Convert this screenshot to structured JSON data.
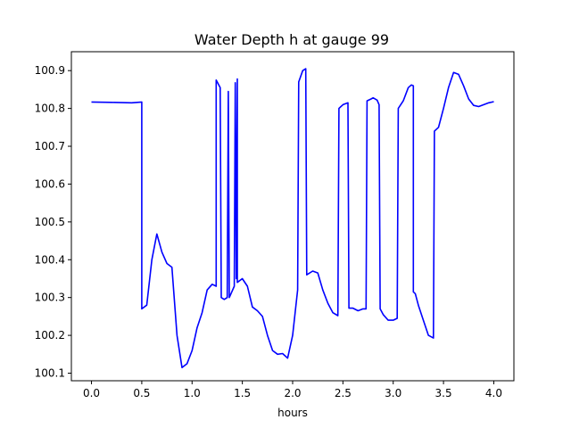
{
  "chart_data": {
    "type": "line",
    "title": "Water Depth h at gauge 99",
    "xlabel": "hours",
    "ylabel": "",
    "xlim": [
      -0.2,
      4.2
    ],
    "ylim": [
      100.08,
      100.95
    ],
    "xticks": [
      0.0,
      0.5,
      1.0,
      1.5,
      2.0,
      2.5,
      3.0,
      3.5,
      4.0
    ],
    "xtick_labels": [
      "0.0",
      "0.5",
      "1.0",
      "1.5",
      "2.0",
      "2.5",
      "3.0",
      "3.5",
      "4.0"
    ],
    "yticks": [
      100.1,
      100.2,
      100.3,
      100.4,
      100.5,
      100.6,
      100.7,
      100.8,
      100.9
    ],
    "ytick_labels": [
      "100.1",
      "100.2",
      "100.3",
      "100.4",
      "100.5",
      "100.6",
      "100.7",
      "100.8",
      "100.9"
    ],
    "grid": false,
    "series": [
      {
        "color": "#0000ff",
        "x": [
          0.0,
          0.2,
          0.4,
          0.5,
          0.5,
          0.55,
          0.6,
          0.65,
          0.7,
          0.75,
          0.8,
          0.85,
          0.9,
          0.95,
          1.0,
          1.05,
          1.1,
          1.15,
          1.2,
          1.24,
          1.24,
          1.28,
          1.29,
          1.32,
          1.35,
          1.36,
          1.37,
          1.42,
          1.43,
          1.44,
          1.45,
          1.45,
          1.5,
          1.55,
          1.6,
          1.65,
          1.7,
          1.75,
          1.8,
          1.85,
          1.9,
          1.95,
          2.0,
          2.05,
          2.06,
          2.1,
          2.13,
          2.14,
          2.2,
          2.25,
          2.3,
          2.35,
          2.4,
          2.45,
          2.46,
          2.5,
          2.55,
          2.56,
          2.6,
          2.65,
          2.7,
          2.73,
          2.74,
          2.78,
          2.8,
          2.84,
          2.86,
          2.87,
          2.9,
          2.95,
          3.0,
          3.04,
          3.05,
          3.1,
          3.15,
          3.18,
          3.2,
          3.2,
          3.22,
          3.25,
          3.3,
          3.35,
          3.4,
          3.41,
          3.45,
          3.5,
          3.55,
          3.6,
          3.65,
          3.7,
          3.75,
          3.8,
          3.85,
          3.9,
          3.95,
          4.0
        ],
        "y": [
          100.817,
          100.816,
          100.815,
          100.817,
          100.27,
          100.28,
          100.4,
          100.468,
          100.42,
          100.39,
          100.38,
          100.2,
          100.115,
          100.125,
          100.16,
          100.22,
          100.26,
          100.32,
          100.335,
          100.33,
          100.875,
          100.855,
          100.3,
          100.295,
          100.3,
          100.845,
          100.3,
          100.33,
          100.868,
          100.35,
          100.878,
          100.34,
          100.35,
          100.33,
          100.275,
          100.265,
          100.25,
          100.2,
          100.16,
          100.15,
          100.152,
          100.14,
          100.2,
          100.32,
          100.87,
          100.9,
          100.905,
          100.36,
          100.37,
          100.365,
          100.32,
          100.285,
          100.26,
          100.252,
          100.8,
          100.81,
          100.815,
          100.272,
          100.272,
          100.265,
          100.27,
          100.27,
          100.82,
          100.825,
          100.828,
          100.822,
          100.81,
          100.27,
          100.255,
          100.24,
          100.24,
          100.245,
          100.8,
          100.82,
          100.855,
          100.862,
          100.86,
          100.315,
          100.31,
          100.28,
          100.24,
          100.2,
          100.193,
          100.74,
          100.75,
          100.8,
          100.855,
          100.895,
          100.89,
          100.86,
          100.825,
          100.808,
          100.805,
          100.81,
          100.815,
          100.818
        ]
      }
    ]
  }
}
